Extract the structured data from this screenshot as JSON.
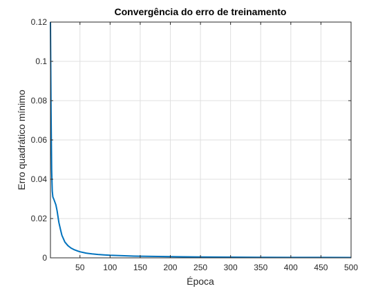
{
  "chart_data": {
    "type": "line",
    "title": "Convergência do erro de treinamento",
    "xlabel": "Época",
    "ylabel": "Erro quadrático mínimo",
    "xlim": [
      1,
      500
    ],
    "ylim": [
      0,
      0.12
    ],
    "x_ticks": [
      50,
      100,
      150,
      200,
      250,
      300,
      350,
      400,
      450,
      500
    ],
    "y_ticks": [
      0,
      0.02,
      0.04,
      0.06,
      0.08,
      0.1,
      0.12
    ],
    "x_tick_labels": [
      "50",
      "100",
      "150",
      "200",
      "250",
      "300",
      "350",
      "400",
      "450",
      "500"
    ],
    "y_tick_labels": [
      "0",
      "0.02",
      "0.04",
      "0.06",
      "0.08",
      "0.1",
      "0.12"
    ],
    "grid": true,
    "legend": "none",
    "line_color": "#0072BD",
    "series": [
      {
        "x": [
          1,
          2,
          3,
          4,
          5,
          7,
          10,
          12,
          15,
          18,
          20,
          25,
          30,
          35,
          40,
          45,
          50,
          60,
          70,
          80,
          90,
          100,
          120,
          140,
          160,
          180,
          200,
          250,
          300,
          350,
          400,
          450,
          500
        ],
        "values": [
          0.12,
          0.075,
          0.045,
          0.034,
          0.031,
          0.0295,
          0.027,
          0.024,
          0.018,
          0.014,
          0.0115,
          0.008,
          0.0062,
          0.005,
          0.0042,
          0.0036,
          0.0031,
          0.0024,
          0.002,
          0.0017,
          0.0015,
          0.0013,
          0.0011,
          0.0009,
          0.0008,
          0.0007,
          0.0006,
          0.00045,
          0.00035,
          0.00028,
          0.00023,
          0.0002,
          0.00018
        ]
      }
    ]
  }
}
